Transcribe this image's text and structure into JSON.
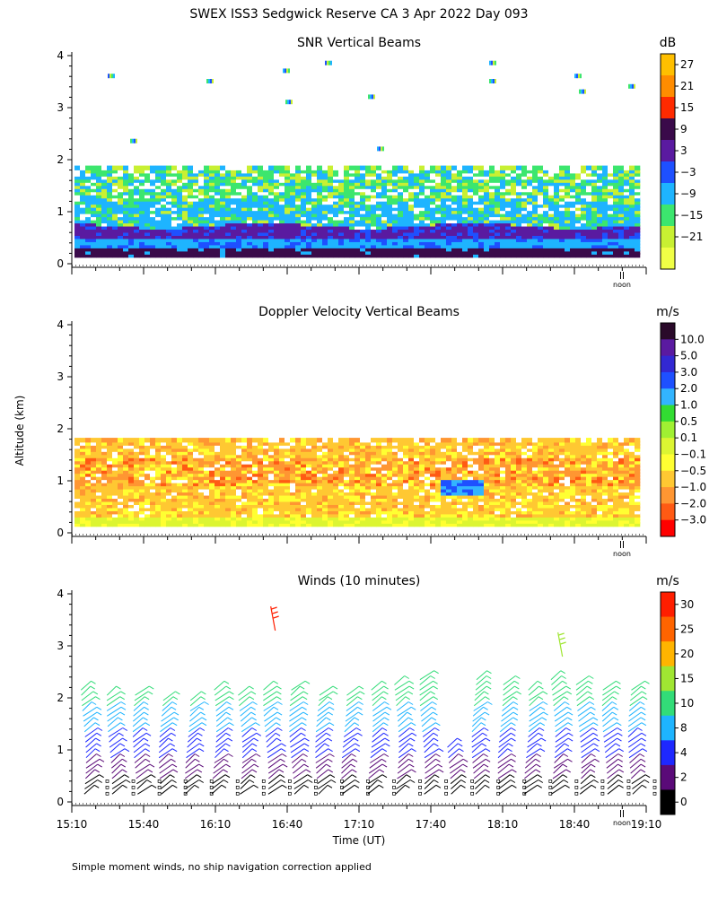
{
  "title": "SWEX ISS3 Sedgwick Reserve CA   3 Apr 2022 Day 093",
  "y_axis_label": "Altitude (km)",
  "x_axis_label": "Time (UT)",
  "footnote": "Simple moment winds, no ship navigation correction applied",
  "noon_marker": "noon",
  "panels": [
    {
      "title": "SNR Vertical Beams",
      "unit": "dB",
      "colorbar": {
        "labels": [
          "27",
          "21",
          "15",
          "9",
          "3",
          "−3",
          "−9",
          "−15",
          "−21"
        ],
        "colors": [
          "#ffbf00",
          "#ff8c00",
          "#ff2a00",
          "#3a0a4a",
          "#5a1aa0",
          "#1e50ff",
          "#1eb4ff",
          "#3ce66e",
          "#c8f032",
          "#f0ff46"
        ]
      }
    },
    {
      "title": "Doppler Velocity Vertical Beams",
      "unit": "m/s",
      "colorbar": {
        "labels": [
          "10.0",
          "5.0",
          "3.0",
          "2.0",
          "1.0",
          "0.5",
          "0.1",
          "−0.1",
          "−0.5",
          "−1.0",
          "−2.0",
          "−3.0"
        ],
        "colors": [
          "#2a0a2a",
          "#5a1aa0",
          "#3228d2",
          "#1e50ff",
          "#32b4ff",
          "#32dc32",
          "#a0f032",
          "#dcf532",
          "#ffff32",
          "#ffc832",
          "#ff9632",
          "#ff5a14",
          "#ff0000"
        ]
      }
    },
    {
      "title": "Winds (10 minutes)",
      "unit": "m/s",
      "colorbar": {
        "labels": [
          "30",
          "25",
          "20",
          "15",
          "10",
          "8",
          "4",
          "2",
          "0"
        ],
        "colors": [
          "#ff1e00",
          "#ff6400",
          "#ffb400",
          "#a0e632",
          "#32dc78",
          "#1eb4ff",
          "#1e28ff",
          "#5a0a78",
          "#000000"
        ]
      }
    }
  ],
  "chart_data": [
    {
      "type": "heatmap",
      "title": "SNR Vertical Beams",
      "unit": "dB",
      "ylabel": "Altitude (km)",
      "ylim": [
        0,
        4
      ],
      "yticks": [
        0,
        1,
        2,
        3,
        4
      ],
      "x_range": [
        "15:10",
        "19:10"
      ],
      "layers": [
        {
          "altitude_km": [
            0.1,
            0.3
          ],
          "snr_db": 9
        },
        {
          "altitude_km": [
            0.3,
            0.45
          ],
          "snr_db": -9
        },
        {
          "altitude_km": [
            0.45,
            0.7
          ],
          "snr_db": 3
        },
        {
          "altitude_km": [
            0.7,
            1.2
          ],
          "snr_db": -9
        },
        {
          "altitude_km": [
            1.2,
            1.85
          ],
          "snr_db": -15
        }
      ]
    },
    {
      "type": "heatmap",
      "title": "Doppler Velocity Vertical Beams",
      "unit": "m/s",
      "ylim": [
        0,
        4
      ],
      "yticks": [
        0,
        1,
        2,
        3,
        4
      ],
      "x_range": [
        "15:10",
        "19:10"
      ],
      "layers": [
        {
          "altitude_km": [
            0.1,
            0.3
          ],
          "velocity_ms": -0.1
        },
        {
          "altitude_km": [
            0.3,
            0.9
          ],
          "velocity_ms": -0.5
        },
        {
          "altitude_km": [
            0.9,
            1.4
          ],
          "velocity_ms": -1.0
        },
        {
          "altitude_km": [
            1.4,
            1.8
          ],
          "velocity_ms": -0.5
        }
      ]
    },
    {
      "type": "scatter",
      "title": "Winds (10 minutes)",
      "unit": "m/s",
      "xlabel": "Time (UT)",
      "ylim": [
        0,
        4
      ],
      "yticks": [
        0,
        1,
        2,
        3,
        4
      ],
      "x_tick_labels": [
        "15:10",
        "15:40",
        "16:10",
        "16:40",
        "17:10",
        "17:40",
        "18:10",
        "18:40",
        "19:10"
      ],
      "profile_tops_km": [
        2.2,
        2.1,
        2.1,
        2.0,
        2.0,
        2.2,
        2.1,
        2.2,
        2.2,
        2.1,
        2.1,
        2.2,
        2.3,
        2.4,
        1.1,
        2.4,
        2.3,
        2.2,
        2.4,
        2.3,
        2.2,
        2.2
      ],
      "isolated_barbs": [
        {
          "time": "16:35",
          "altitude_km": 3.5,
          "speed_ms": 30
        },
        {
          "time": "18:35",
          "altitude_km": 3.0,
          "speed_ms": 15
        }
      ]
    }
  ]
}
